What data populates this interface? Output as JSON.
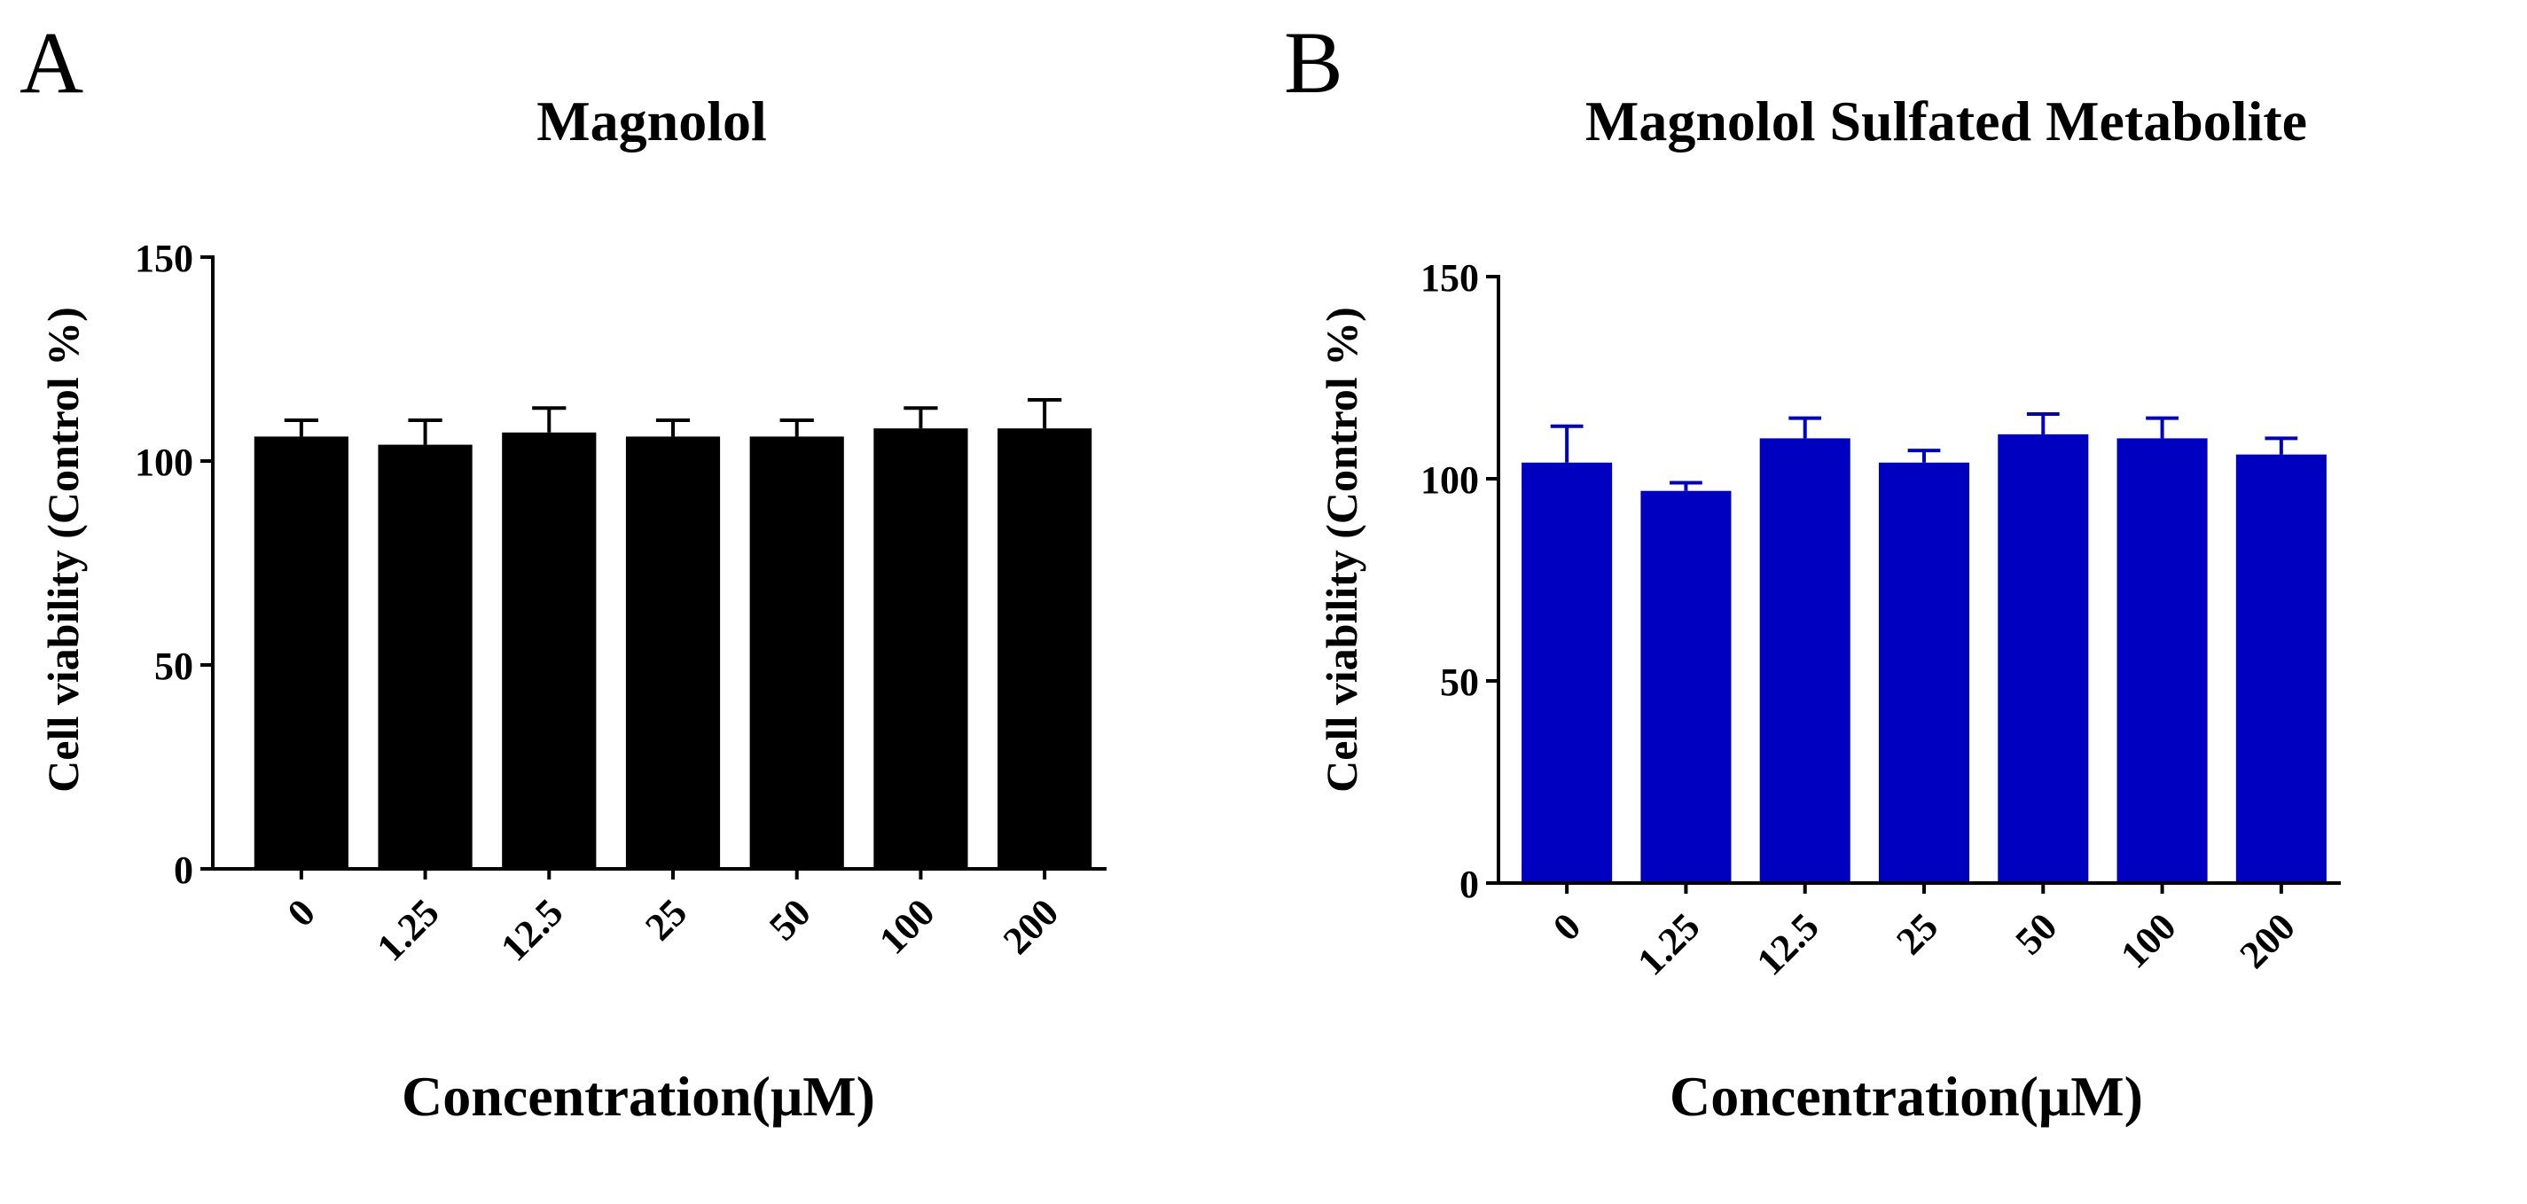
{
  "chart_data": [
    {
      "type": "bar",
      "panel": "A",
      "title": "Magnolol",
      "xlabel": "Concentration(μM)",
      "ylabel": "Cell viability (Control %)",
      "categories": [
        "0",
        "1.25",
        "12.5",
        "25",
        "50",
        "100",
        "200"
      ],
      "values": [
        106,
        104,
        107,
        106,
        106,
        108,
        108
      ],
      "errors": [
        4,
        6,
        6,
        4,
        4,
        5,
        7
      ],
      "ylim": [
        0,
        150
      ],
      "yticks": [
        "0",
        "50",
        "100",
        "150"
      ],
      "bar_color": "#000000",
      "grid": false
    },
    {
      "type": "bar",
      "panel": "B",
      "title": "Magnolol Sulfated Metabolite",
      "xlabel": "Concentration(μM)",
      "ylabel": "Cell viability (Control %)",
      "categories": [
        "0",
        "1.25",
        "12.5",
        "25",
        "50",
        "100",
        "200"
      ],
      "values": [
        104,
        97,
        110,
        104,
        111,
        110,
        106
      ],
      "errors": [
        9,
        2,
        5,
        3,
        5,
        5,
        4
      ],
      "ylim": [
        0,
        150
      ],
      "yticks": [
        "0",
        "50",
        "100",
        "150"
      ],
      "bar_color": "#0000C0",
      "grid": false
    }
  ]
}
